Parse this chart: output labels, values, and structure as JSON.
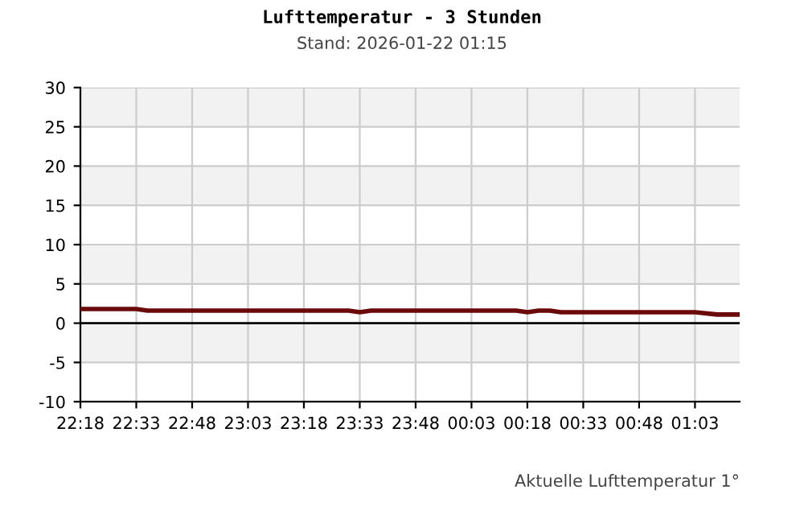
{
  "chart_data": {
    "type": "line",
    "title": "Lufttemperatur - 3 Stunden",
    "subtitle": "Stand: 2026-01-22 01:15",
    "annotations": [
      "Aktuelle Lufttemperatur 1°"
    ],
    "x": [
      "2026-01-21T22:18",
      "2026-01-21T22:33",
      "2026-01-21T22:36",
      "2026-01-21T23:30",
      "2026-01-21T23:33",
      "2026-01-21T23:36",
      "2026-01-22T00:15",
      "2026-01-22T00:18",
      "2026-01-22T00:21",
      "2026-01-22T00:24",
      "2026-01-22T00:27",
      "2026-01-22T00:30",
      "2026-01-22T01:03",
      "2026-01-22T01:09",
      "2026-01-22T01:15"
    ],
    "series": [
      {
        "color": "#6b0a0a",
        "values": [
          1.8,
          1.8,
          1.6,
          1.6,
          1.4,
          1.6,
          1.6,
          1.4,
          1.6,
          1.6,
          1.4,
          1.4,
          1.4,
          1.1,
          1.1
        ]
      }
    ],
    "xlim": [
      "2026-01-21T22:18",
      "2026-01-22T01:15"
    ],
    "xticks": [
      {
        "value": "2026-01-21T22:18",
        "label": "22:18"
      },
      {
        "value": "2026-01-21T22:33",
        "label": "22:33"
      },
      {
        "value": "2026-01-21T22:48",
        "label": "22:48"
      },
      {
        "value": "2026-01-21T23:03",
        "label": "23:03"
      },
      {
        "value": "2026-01-21T23:18",
        "label": "23:18"
      },
      {
        "value": "2026-01-21T23:33",
        "label": "23:33"
      },
      {
        "value": "2026-01-21T23:48",
        "label": "23:48"
      },
      {
        "value": "2026-01-22T00:03",
        "label": "00:03"
      },
      {
        "value": "2026-01-22T00:18",
        "label": "00:18"
      },
      {
        "value": "2026-01-22T00:33",
        "label": "00:33"
      },
      {
        "value": "2026-01-22T00:48",
        "label": "00:48"
      },
      {
        "value": "2026-01-22T01:03",
        "label": "01:03"
      }
    ],
    "ylim": [
      -10,
      30
    ],
    "yticks": [
      -10,
      -5,
      0,
      5,
      10,
      15,
      20,
      25,
      30
    ],
    "grid": true,
    "marker": "none",
    "line_style": "solid",
    "ref_lines": [
      {
        "axis": "y",
        "value": 0,
        "color": "#000000"
      }
    ],
    "bands": [
      {
        "axis": "y",
        "from": 25,
        "to": 30,
        "color": "#f2f2f2"
      },
      {
        "axis": "y",
        "from": 15,
        "to": 20,
        "color": "#f2f2f2"
      },
      {
        "axis": "y",
        "from": 5,
        "to": 10,
        "color": "#f2f2f2"
      },
      {
        "axis": "y",
        "from": -5,
        "to": 0,
        "color": "#f2f2f2"
      }
    ]
  }
}
